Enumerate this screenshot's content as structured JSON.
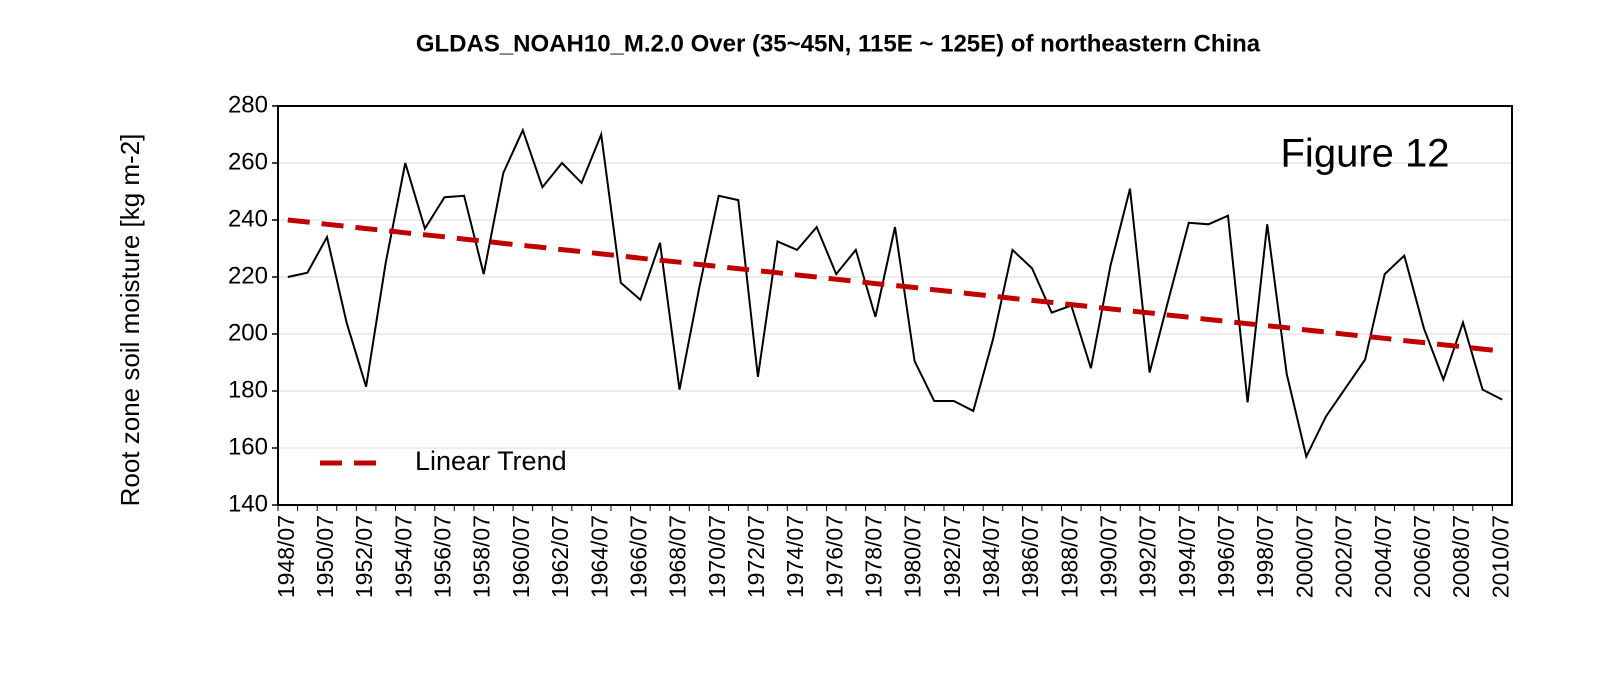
{
  "chart_data": {
    "type": "line",
    "title": "GLDAS_NOAH10_M.2.0  Over (35~45N,  115E ~ 125E)  of northeastern China",
    "y_label": "Root zone soil moisture [kg m-2]",
    "annotation": "Figure 12",
    "categories": [
      "1948/07",
      null,
      "1950/07",
      null,
      "1952/07",
      null,
      "1954/07",
      null,
      "1956/07",
      null,
      "1958/07",
      null,
      "1960/07",
      null,
      "1962/07",
      null,
      "1964/07",
      null,
      "1966/07",
      null,
      "1968/07",
      null,
      "1970/07",
      null,
      "1972/07",
      null,
      "1974/07",
      null,
      "1976/07",
      null,
      "1978/07",
      null,
      "1980/07",
      null,
      "1982/07",
      null,
      "1984/07",
      null,
      "1986/07",
      null,
      "1988/07",
      null,
      "1990/07",
      null,
      "1992/07",
      null,
      "1994/07",
      null,
      "1996/07",
      null,
      "1998/07",
      null,
      "2000/07",
      null,
      "2002/07",
      null,
      "2004/07",
      null,
      "2006/07",
      null,
      "2008/07",
      null,
      "2010/07"
    ],
    "series": [
      {
        "color": "#000000",
        "values": [
          220,
          221.5,
          234,
          204,
          181.5,
          225,
          260,
          237,
          248,
          248.5,
          221,
          256.5,
          271.5,
          251.5,
          260,
          253,
          270,
          218,
          212,
          232,
          180.5,
          216,
          248.5,
          247,
          185,
          232.5,
          229.5,
          237.5,
          221,
          229.5,
          206,
          237.5,
          190.5,
          176.5,
          176.5,
          173,
          198,
          229.5,
          223,
          207.5,
          210,
          188,
          224,
          251,
          186.5,
          213,
          239,
          238.5,
          241.5,
          176,
          238.5,
          186,
          157,
          171,
          181,
          191,
          221,
          227.5,
          202,
          184,
          204,
          180.5,
          177
        ]
      },
      {
        "name": "Linear Trend",
        "color": "#c00000",
        "dashed": true,
        "values": [
          240.0,
          239.3,
          238.5,
          237.8,
          237.0,
          236.3,
          235.5,
          234.8,
          234.1,
          233.3,
          232.6,
          231.8,
          231.1,
          230.4,
          229.6,
          228.9,
          228.1,
          227.4,
          226.6,
          225.9,
          225.2,
          224.4,
          223.7,
          222.9,
          222.2,
          221.5,
          220.7,
          220.0,
          219.2,
          218.5,
          217.7,
          217.0,
          216.3,
          215.5,
          214.8,
          214.0,
          213.3,
          212.5,
          211.8,
          211.1,
          210.3,
          209.6,
          208.8,
          208.1,
          207.4,
          206.6,
          205.9,
          205.1,
          204.4,
          203.6,
          202.9,
          202.2,
          201.4,
          200.7,
          199.9,
          199.2,
          198.5,
          197.7,
          197.0,
          196.2,
          195.5,
          194.7,
          194.0
        ]
      }
    ],
    "ylim": [
      140,
      280
    ],
    "yticks": [
      140,
      160,
      180,
      200,
      220,
      240,
      260,
      280
    ],
    "grid": true,
    "legend": "lower left"
  }
}
